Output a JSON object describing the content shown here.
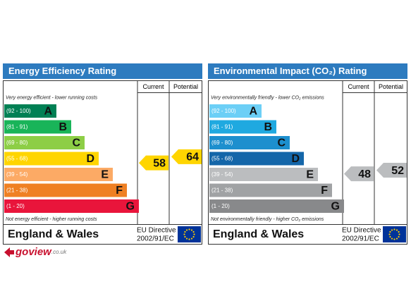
{
  "panels": [
    {
      "title": "Energy Efficiency Rating",
      "columns": [
        "Current",
        "Potential"
      ],
      "top_note": "Very energy efficient - lower running costs",
      "bands": [
        {
          "range": "(92 - 100)",
          "letter": "A",
          "color": "#008054"
        },
        {
          "range": "(81 - 91)",
          "letter": "B",
          "color": "#19b459"
        },
        {
          "range": "(69 - 80)",
          "letter": "C",
          "color": "#8dce46"
        },
        {
          "range": "(55 - 68)",
          "letter": "D",
          "color": "#ffd500"
        },
        {
          "range": "(39 - 54)",
          "letter": "E",
          "color": "#fcaa65"
        },
        {
          "range": "(21 - 38)",
          "letter": "F",
          "color": "#ef8023"
        },
        {
          "range": "(1 - 20)",
          "letter": "G",
          "color": "#e9153b"
        }
      ],
      "bottom_note": "Not energy efficient - higher running costs",
      "current": 58,
      "potential": 64,
      "country": "England & Wales",
      "directive": [
        "EU Directive",
        "2002/91/EC"
      ]
    },
    {
      "title": "Environmental Impact (CO₂) Rating",
      "columns": [
        "Current",
        "Potential"
      ],
      "top_note": "Very environmentally friendly - lower CO₂ emissions",
      "bands": [
        {
          "range": "(92 - 100)",
          "letter": "A",
          "color": "#6ccff6"
        },
        {
          "range": "(81 - 91)",
          "letter": "B",
          "color": "#1fa9e0"
        },
        {
          "range": "(69 - 80)",
          "letter": "C",
          "color": "#1d8fce"
        },
        {
          "range": "(55 - 68)",
          "letter": "D",
          "color": "#1466a9"
        },
        {
          "range": "(39 - 54)",
          "letter": "E",
          "color": "#bbbdbf"
        },
        {
          "range": "(21 - 38)",
          "letter": "F",
          "color": "#a0a2a4"
        },
        {
          "range": "(1 - 20)",
          "letter": "G",
          "color": "#88898b"
        }
      ],
      "bottom_note": "Not environmentally friendly - higher CO₂ emissions",
      "current": 48,
      "potential": 52,
      "country": "England & Wales",
      "directive": [
        "EU Directive",
        "2002/91/EC"
      ]
    }
  ],
  "logo": {
    "name": "goview",
    "suffix": ".co.uk"
  }
}
